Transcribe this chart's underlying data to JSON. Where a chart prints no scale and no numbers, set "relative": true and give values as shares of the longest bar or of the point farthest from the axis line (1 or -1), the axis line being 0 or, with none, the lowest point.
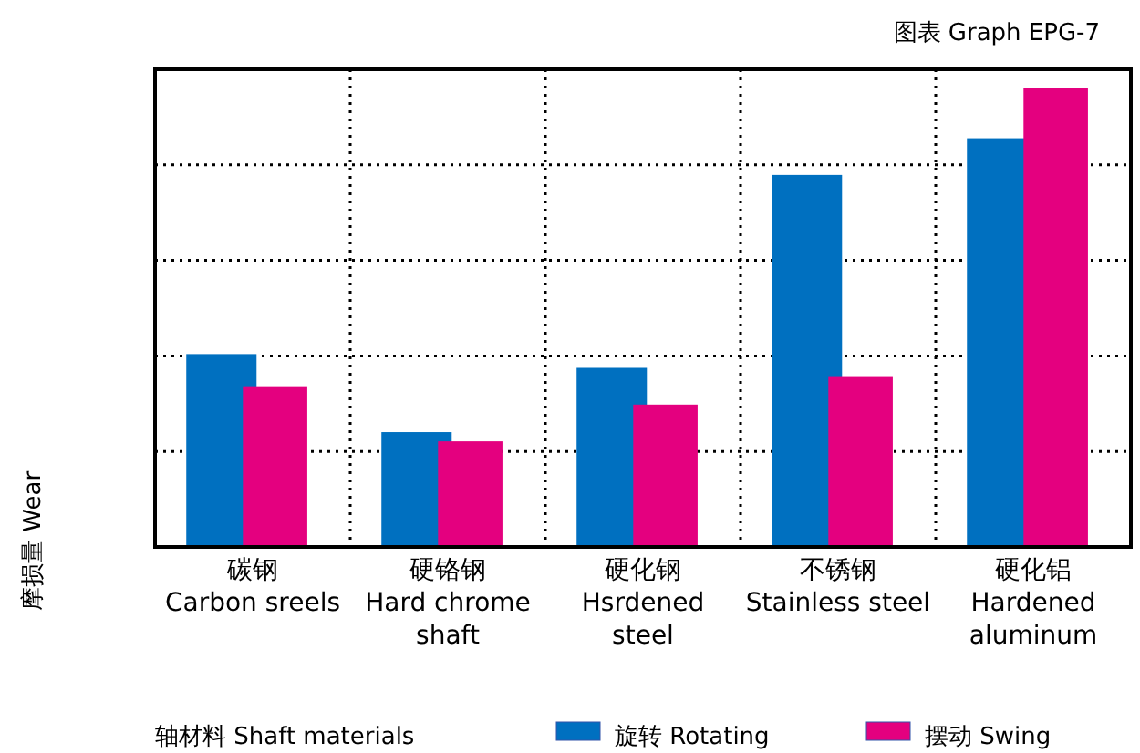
{
  "chart_data": {
    "type": "bar",
    "title": "图表 Graph EPG-7",
    "ylabel": "摩损量 Wear",
    "xlabel": "轴材料  Shaft materials",
    "categories": [
      "碳钢\nCarbon sreels",
      "硬铬钢\nHard chrome\nshaft",
      "硬化钢\nHsrdened\nsteel",
      "不锈钢\nStainless steel",
      "硬化铝\nHardened\naluminum"
    ],
    "relative": true,
    "grid": true,
    "legend": "bottom right",
    "series": [
      {
        "name": "旋转 Rotating",
        "color": "#0070c0",
        "values": [
          0.42,
          0.25,
          0.39,
          0.81,
          0.89
        ]
      },
      {
        "name": "摆动 Swing",
        "color": "#e4007f",
        "values": [
          0.35,
          0.23,
          0.31,
          0.37,
          1
        ]
      }
    ]
  }
}
